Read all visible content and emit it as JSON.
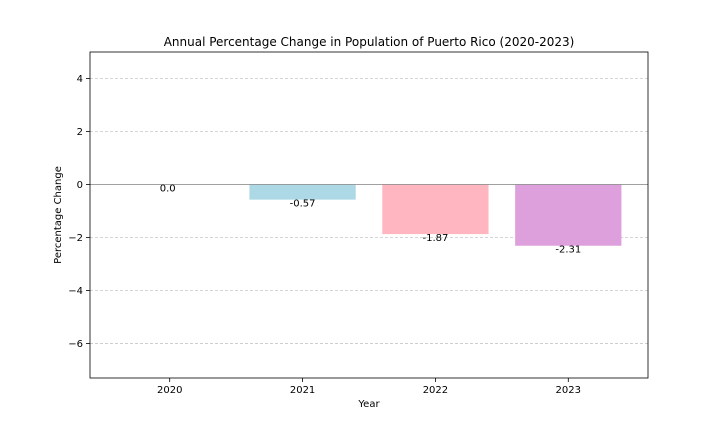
{
  "chart_data": {
    "type": "bar",
    "title": "Annual Percentage Change in Population of Puerto Rico (2020-2023)",
    "xlabel": "Year",
    "ylabel": "Percentage Change",
    "categories": [
      "2020",
      "2021",
      "2022",
      "2023"
    ],
    "values": [
      0.0,
      -0.57,
      -1.87,
      -2.31
    ],
    "data_labels": [
      "0.0",
      "-0.57",
      "-1.87",
      "-2.31"
    ],
    "colors": [
      "#add8e6",
      "#add8e6",
      "#ffb6c1",
      "#dda0dd"
    ],
    "ylim": [
      -7.3,
      5.0
    ],
    "yticks": [
      4,
      2,
      0,
      -2,
      -4,
      -6
    ],
    "ytick_labels": [
      "4",
      "2",
      "0",
      "−2",
      "−4",
      "−6"
    ],
    "grid": "y-dashed",
    "zero_line": true,
    "legend": "none"
  }
}
